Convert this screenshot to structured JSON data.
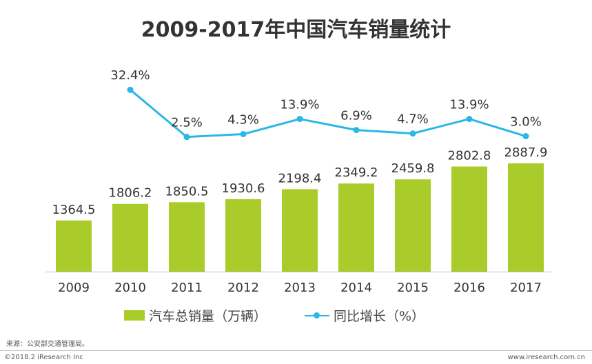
{
  "chart_data": {
    "type": "bar",
    "title": "2009-2017年中国汽车销量统计",
    "categories": [
      "2009",
      "2010",
      "2011",
      "2012",
      "2013",
      "2014",
      "2015",
      "2016",
      "2017"
    ],
    "series": [
      {
        "name": "汽车总销量（万辆）",
        "type": "bar",
        "values": [
          1364.5,
          1806.2,
          1850.5,
          1930.6,
          2198.4,
          2349.2,
          2459.8,
          2802.8,
          2887.9
        ],
        "labels": [
          "1364.5",
          "1806.2",
          "1850.5",
          "1930.6",
          "2198.4",
          "2349.2",
          "2459.8",
          "2802.8",
          "2887.9"
        ]
      },
      {
        "name": "同比增长（%）",
        "type": "line",
        "x": [
          "2010",
          "2011",
          "2012",
          "2013",
          "2014",
          "2015",
          "2016",
          "2017"
        ],
        "values": [
          32.4,
          2.5,
          4.3,
          13.9,
          6.9,
          4.7,
          13.9,
          3.0
        ],
        "labels": [
          "32.4%",
          "2.5%",
          "4.3%",
          "13.9%",
          "6.9%",
          "4.7%",
          "13.9%",
          "3.0%"
        ]
      }
    ],
    "colors": {
      "bar": "#a9cc2a",
      "line": "#29b8e6",
      "text": "#333333"
    },
    "grid": false,
    "legend_position": "bottom"
  },
  "footer": {
    "source": "来源：公安部交通管理局。",
    "copyright": "©2018.2 iResearch Inc",
    "website": "www.iresearch.com.cn"
  }
}
